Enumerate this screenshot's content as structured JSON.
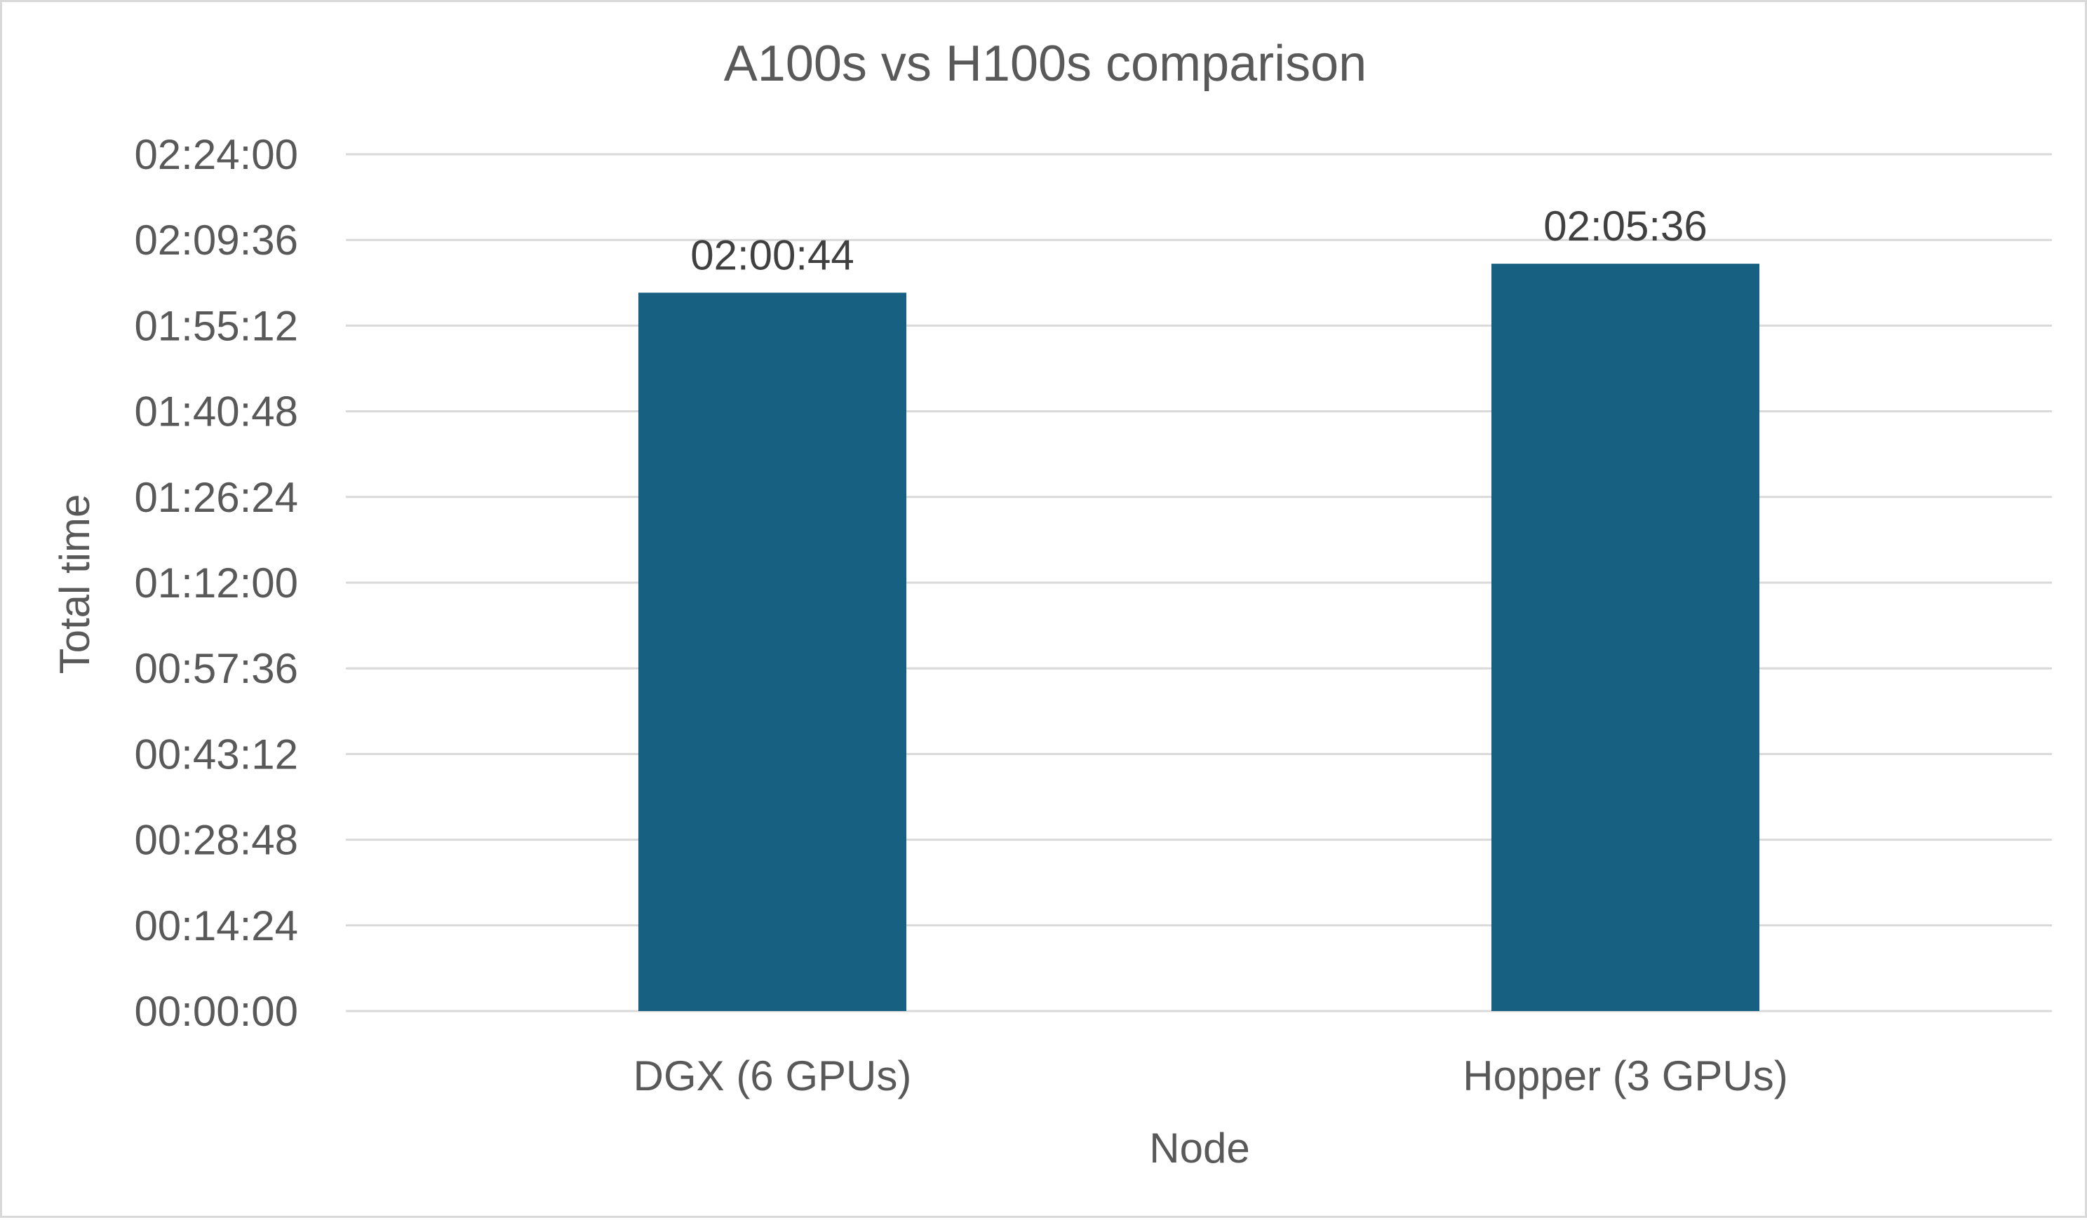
{
  "chart_data": {
    "type": "bar",
    "title": "A100s vs H100s comparison",
    "xlabel": "Node",
    "ylabel": "Total time",
    "categories": [
      "DGX (6 GPUs)",
      "Hopper (3 GPUs)"
    ],
    "series": [
      {
        "values_seconds": [
          7244,
          7536
        ],
        "value_labels": [
          "02:00:44",
          "02:05:36"
        ]
      }
    ],
    "ylim_seconds": [
      0,
      8640
    ],
    "y_ticks": [
      {
        "seconds": 0,
        "label": "00:00:00"
      },
      {
        "seconds": 864,
        "label": "00:14:24"
      },
      {
        "seconds": 1728,
        "label": "00:28:48"
      },
      {
        "seconds": 2592,
        "label": "00:43:12"
      },
      {
        "seconds": 3456,
        "label": "00:57:36"
      },
      {
        "seconds": 4320,
        "label": "01:12:00"
      },
      {
        "seconds": 5184,
        "label": "01:26:24"
      },
      {
        "seconds": 6048,
        "label": "01:40:48"
      },
      {
        "seconds": 6912,
        "label": "01:55:12"
      },
      {
        "seconds": 7776,
        "label": "02:09:36"
      },
      {
        "seconds": 8640,
        "label": "02:24:00"
      }
    ],
    "grid": true,
    "legend": "none",
    "colors": {
      "bar": "#176082",
      "grid": "#d9d9d9",
      "text": "#595959",
      "data_label": "#404040"
    }
  }
}
